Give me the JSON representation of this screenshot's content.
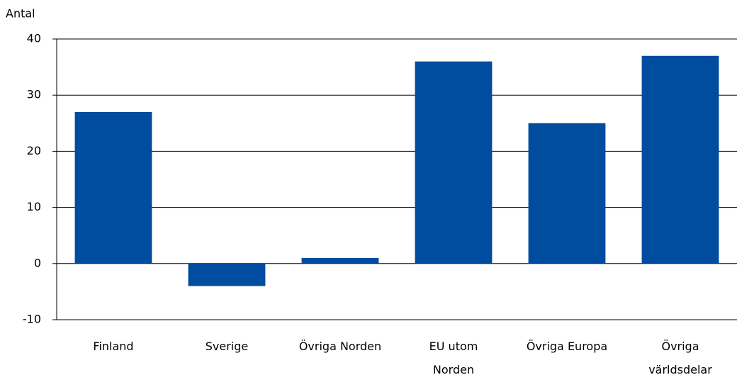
{
  "chart_data": {
    "type": "bar",
    "ylabel": "Antal",
    "categories": [
      "Finland",
      "Sverige",
      "Övriga Norden",
      "EU utom\nNorden",
      "Övriga Europa",
      "Övriga\nvärldsdelar"
    ],
    "values": [
      27,
      -4,
      1,
      36,
      25,
      37
    ],
    "color": "#004c9f",
    "ylim": [
      -10,
      40
    ],
    "yticks": [
      -10,
      0,
      10,
      20,
      30,
      40
    ],
    "grid": true
  }
}
